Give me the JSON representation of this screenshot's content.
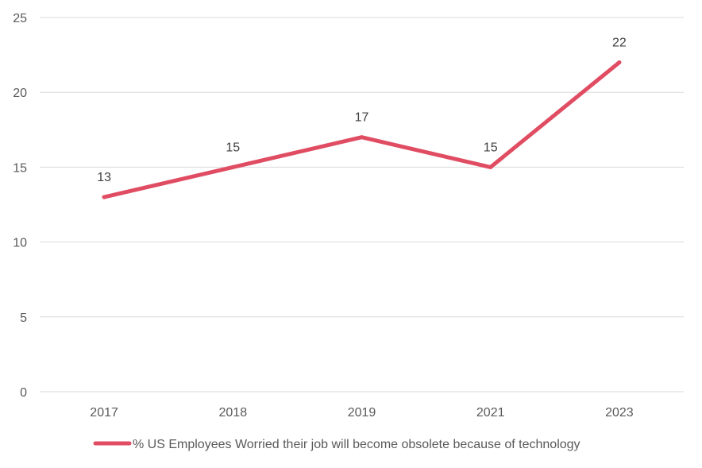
{
  "chart_data": {
    "type": "line",
    "categories": [
      "2017",
      "2018",
      "2019",
      "2021",
      "2023"
    ],
    "series": [
      {
        "name": "% US Employees Worried their job will become obsolete because of technology",
        "values": [
          13,
          15,
          17,
          15,
          22
        ],
        "color": "#E04D63"
      }
    ],
    "ylim": [
      0,
      25
    ],
    "yticks": [
      0,
      5,
      10,
      15,
      20,
      25
    ],
    "grid": true,
    "legend_position": "bottom",
    "data_labels": true
  }
}
